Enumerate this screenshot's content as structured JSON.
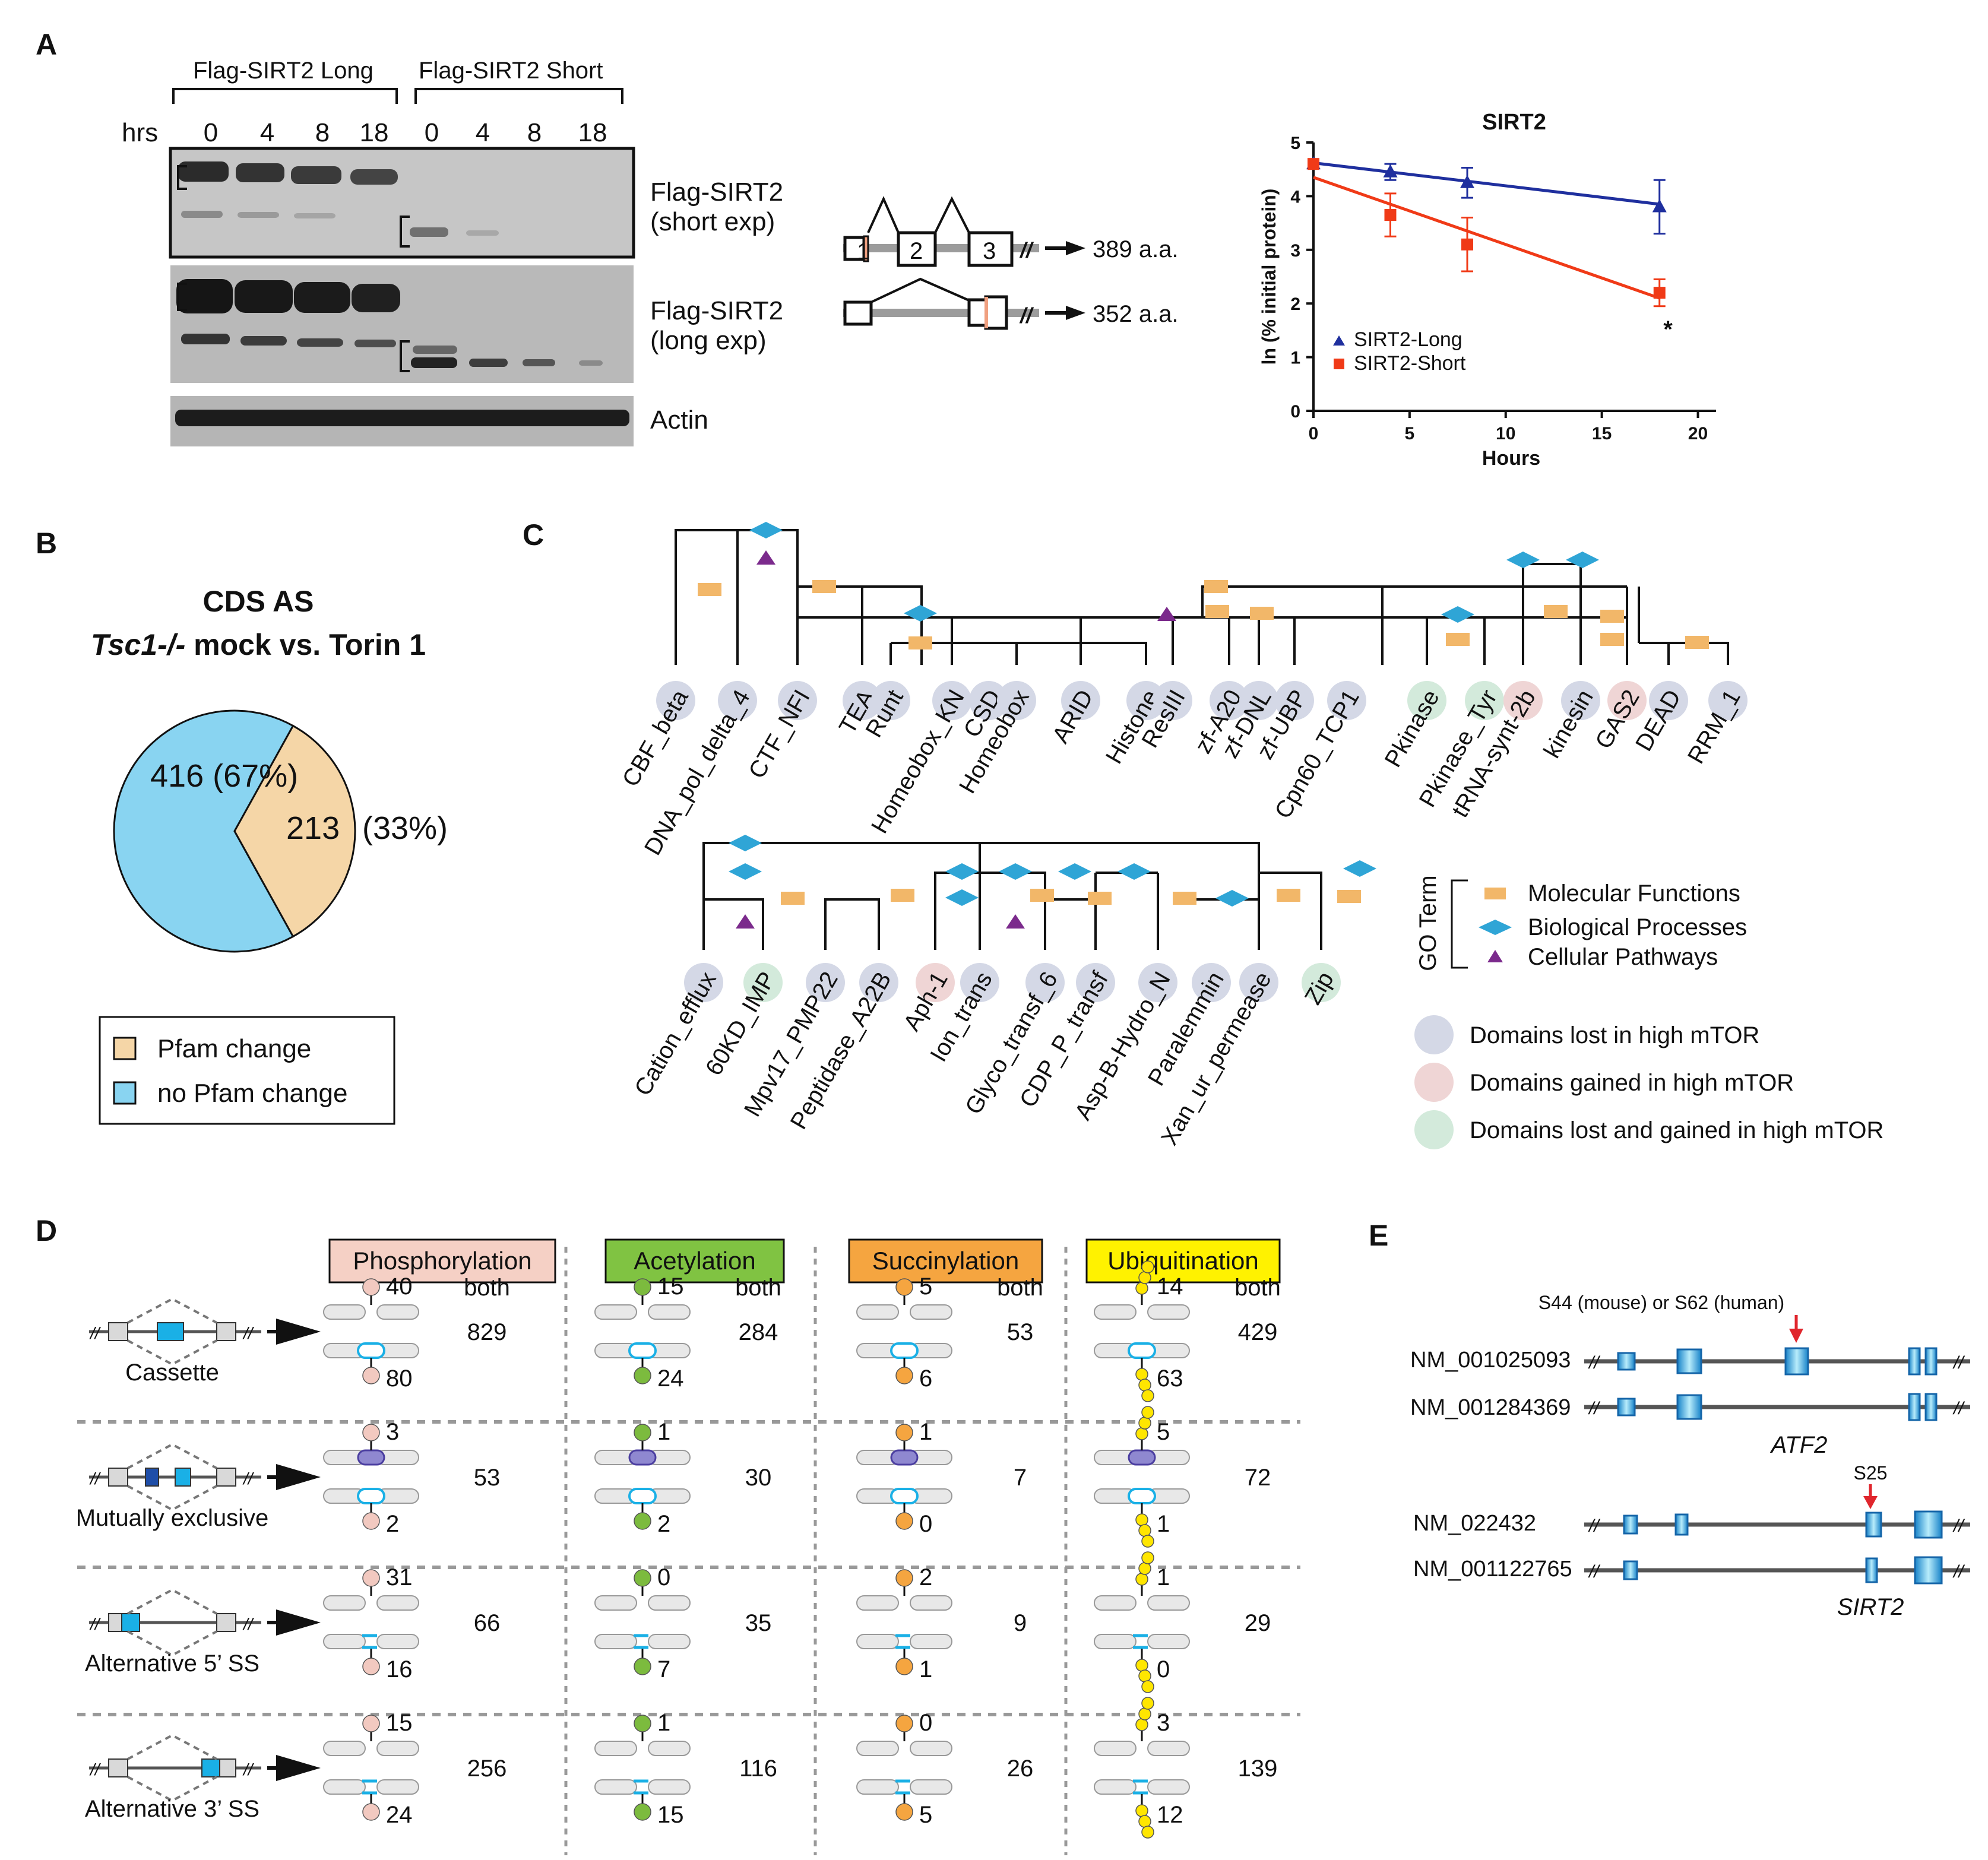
{
  "panels": {
    "a": "A",
    "b": "B",
    "c": "C",
    "d": "D",
    "e": "E"
  },
  "panelA": {
    "group_long": "Flag-SIRT2 Long",
    "group_short": "Flag-SIRT2 Short",
    "hrs_label": "hrs",
    "timepoints": [
      "0",
      "4",
      "8",
      "18",
      "0",
      "4",
      "8",
      "18"
    ],
    "blot_labels": {
      "short1": "Flag-SIRT2",
      "short2": "(short exp)",
      "long1": "Flag-SIRT2",
      "long2": "(long exp)",
      "actin": "Actin"
    },
    "exon_numbers": [
      "1",
      "2",
      "3"
    ],
    "isoform_long_aa": "389 a.a.",
    "isoform_short_aa": "352 a.a.",
    "break_mark": "//"
  },
  "chart_data": {
    "type": "line",
    "title": "SIRT2",
    "xlabel": "Hours",
    "ylabel": "ln (% initial protein)",
    "xlim": [
      0,
      20
    ],
    "ylim": [
      0,
      5
    ],
    "xticks": [
      "0",
      "5",
      "10",
      "15",
      "20"
    ],
    "yticks": [
      "0",
      "1",
      "2",
      "3",
      "4",
      "5"
    ],
    "series": [
      {
        "name": "SIRT2-Long",
        "color": "#1f2f9e",
        "marker": "triangle",
        "x": [
          0,
          4,
          8,
          18
        ],
        "y": [
          4.6,
          4.45,
          4.25,
          3.8
        ],
        "err": [
          0.05,
          0.15,
          0.28,
          0.5
        ],
        "fit": [
          [
            0,
            4.62
          ],
          [
            18,
            3.85
          ]
        ]
      },
      {
        "name": "SIRT2-Short",
        "color": "#f03a17",
        "marker": "square",
        "x": [
          0,
          4,
          8,
          18
        ],
        "y": [
          4.6,
          3.65,
          3.1,
          2.2
        ],
        "err": [
          0.05,
          0.4,
          0.5,
          0.25
        ],
        "fit": [
          [
            0,
            4.35
          ],
          [
            18,
            2.1
          ]
        ]
      }
    ],
    "annotation": "*"
  },
  "panelB": {
    "title1": "CDS AS",
    "title2_italic": "Tsc1-/-",
    "title2_rest": " mock vs. Torin 1",
    "slices": [
      {
        "label": "416 (67%)",
        "value": 416,
        "color": "#89d4f1"
      },
      {
        "label": "213",
        "value": 213,
        "color": "#f5d6a7"
      }
    ],
    "slice_outside_label": "(33%)",
    "legend": [
      {
        "label": "Pfam change",
        "color": "#f5d6a7"
      },
      {
        "label": "no Pfam change",
        "color": "#89d4f1"
      }
    ]
  },
  "panelC": {
    "top_domains": [
      {
        "name": "CBF_beta",
        "cat": "lost"
      },
      {
        "name": "DNA_pol_delta_4",
        "cat": "lost"
      },
      {
        "name": "CTF_NFI",
        "cat": "lost"
      },
      {
        "name": "TEA",
        "cat": "lost"
      },
      {
        "name": "Runt",
        "cat": "lost"
      },
      {
        "name": "Homeobox_KN",
        "cat": "lost"
      },
      {
        "name": "CSD",
        "cat": "lost"
      },
      {
        "name": "Homeobox",
        "cat": "lost"
      },
      {
        "name": "ARID",
        "cat": "lost"
      },
      {
        "name": "Histone",
        "cat": "lost"
      },
      {
        "name": "ResIII",
        "cat": "lost"
      },
      {
        "name": "zf-A20",
        "cat": "lost"
      },
      {
        "name": "zf-DNL",
        "cat": "lost"
      },
      {
        "name": "zf-UBP",
        "cat": "lost"
      },
      {
        "name": "Cpn60_TCP1",
        "cat": "lost"
      },
      {
        "name": "Pkinase",
        "cat": "both"
      },
      {
        "name": "Pkinase_Tyr",
        "cat": "both"
      },
      {
        "name": "tRNA-synt-2b",
        "cat": "gained"
      },
      {
        "name": "kinesin",
        "cat": "lost"
      },
      {
        "name": "GAS2",
        "cat": "gained"
      },
      {
        "name": "DEAD",
        "cat": "lost"
      },
      {
        "name": "RRM_1",
        "cat": "lost"
      }
    ],
    "bottom_domains": [
      {
        "name": "Cation_efflux",
        "cat": "lost"
      },
      {
        "name": "60KD_IMP",
        "cat": "both"
      },
      {
        "name": "Mpv17_PMP22",
        "cat": "lost"
      },
      {
        "name": "Peptidase_A22B",
        "cat": "lost"
      },
      {
        "name": "Aph-1",
        "cat": "gained"
      },
      {
        "name": "Ion_trans",
        "cat": "lost"
      },
      {
        "name": "Glyco_transf_6",
        "cat": "lost"
      },
      {
        "name": "CDP_P_transf",
        "cat": "lost"
      },
      {
        "name": "Asp-B-Hydro_N",
        "cat": "lost"
      },
      {
        "name": "Paralemmin",
        "cat": "lost"
      },
      {
        "name": "Xan_ur_permease",
        "cat": "lost"
      },
      {
        "name": "Zip",
        "cat": "both"
      }
    ],
    "go_term_label": "GO Term",
    "legend_go": [
      {
        "label": "Molecular Functions",
        "shape": "rect",
        "color": "#f2b769"
      },
      {
        "label": "Biological Processes",
        "shape": "diamond",
        "color": "#2fa5d6"
      },
      {
        "label": "Cellular Pathways",
        "shape": "triangle",
        "color": "#7b2a8c"
      }
    ],
    "legend_domains": [
      {
        "label": "Domains lost in high mTOR",
        "color": "#d4d8e6"
      },
      {
        "label": "Domains gained in high mTOR",
        "color": "#efd5d5"
      },
      {
        "label": "Domains lost and gained in high mTOR",
        "color": "#d3eadb"
      }
    ],
    "colors": {
      "lost": "#d4d8e6",
      "gained": "#efd5d5",
      "both": "#d3eadb"
    }
  },
  "panelD": {
    "ptm_headers": [
      {
        "label": "Phosphorylation",
        "bg": "#f5d0c5",
        "dot": "#f2c9c0"
      },
      {
        "label": "Acetylation",
        "bg": "#80c342",
        "dot": "#7cbb3e"
      },
      {
        "label": "Succinylation",
        "bg": "#f5a540",
        "dot": "#f5a540"
      },
      {
        "label": "Ubiquitination",
        "bg": "#fff200",
        "dot": "#ffe600"
      }
    ],
    "both_label": "both",
    "event_types": [
      "Cassette",
      "Mutually exclusive",
      "Alternative 5’ SS",
      "Alternative 3’ SS"
    ],
    "rows": [
      [
        [
          "40",
          "80",
          "829"
        ],
        [
          "15",
          "24",
          "284"
        ],
        [
          "5",
          "6",
          "53"
        ],
        [
          "14",
          "63",
          "429"
        ]
      ],
      [
        [
          "3",
          "2",
          "53"
        ],
        [
          "1",
          "2",
          "30"
        ],
        [
          "1",
          "0",
          "7"
        ],
        [
          "5",
          "1",
          "72"
        ]
      ],
      [
        [
          "31",
          "16",
          "66"
        ],
        [
          "0",
          "7",
          "35"
        ],
        [
          "2",
          "1",
          "9"
        ],
        [
          "1",
          "0",
          "29"
        ]
      ],
      [
        [
          "15",
          "24",
          "256"
        ],
        [
          "1",
          "15",
          "116"
        ],
        [
          "0",
          "5",
          "26"
        ],
        [
          "3",
          "12",
          "139"
        ]
      ]
    ]
  },
  "panelE": {
    "site_atf2": "S44 (mouse) or S62 (human)",
    "site_sirt2": "S25",
    "transcripts_atf2": [
      "NM_001025093",
      "NM_001284369"
    ],
    "gene_atf2": "ATF2",
    "transcripts_sirt2": [
      "NM_022432",
      "NM_001122765"
    ],
    "gene_sirt2": "SIRT2"
  }
}
